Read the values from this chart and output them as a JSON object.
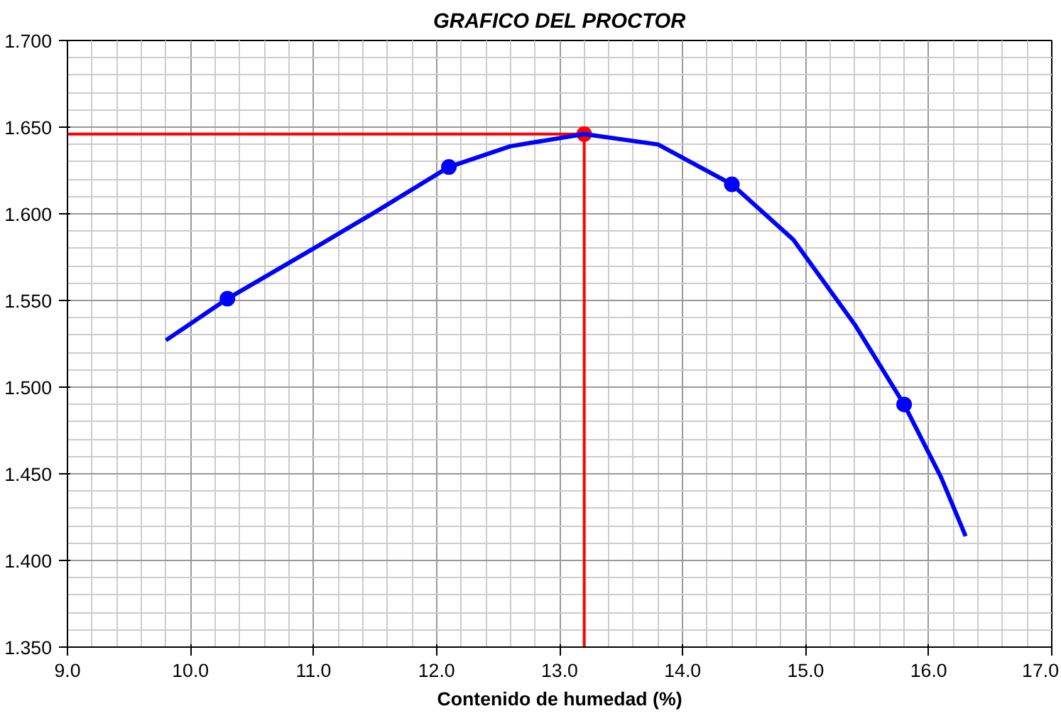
{
  "chart_data": {
    "type": "line",
    "title": "GRAFICO DEL PROCTOR",
    "xlabel": "Contenido de humedad (%)",
    "xlim": [
      9.0,
      17.0
    ],
    "xticks": [
      {
        "value": 9.0,
        "label": "9.0"
      },
      {
        "value": 10.0,
        "label": "10.0"
      },
      {
        "value": 11.0,
        "label": "11.0"
      },
      {
        "value": 12.0,
        "label": "12.0"
      },
      {
        "value": 13.0,
        "label": "13.0"
      },
      {
        "value": 14.0,
        "label": "14.0"
      },
      {
        "value": 15.0,
        "label": "15.0"
      },
      {
        "value": 16.0,
        "label": "16.0"
      },
      {
        "value": 17.0,
        "label": "17.0"
      }
    ],
    "ylim": [
      1.35,
      1.7
    ],
    "yticks": [
      {
        "value": 1.35,
        "label": "1.350"
      },
      {
        "value": 1.4,
        "label": "1.400"
      },
      {
        "value": 1.45,
        "label": "1.450"
      },
      {
        "value": 1.5,
        "label": "1.500"
      },
      {
        "value": 1.55,
        "label": "1.550"
      },
      {
        "value": 1.6,
        "label": "1.600"
      },
      {
        "value": 1.65,
        "label": "1.650"
      },
      {
        "value": 1.7,
        "label": "1.700"
      }
    ],
    "grid": true,
    "series": [
      {
        "color": "#0000ff",
        "x": [
          9.8,
          10.3,
          11.0,
          11.5,
          12.1,
          12.6,
          13.2,
          13.8,
          14.4,
          14.9,
          15.4,
          15.8,
          16.1,
          16.3
        ],
        "values": [
          1.527,
          1.551,
          1.58,
          1.601,
          1.627,
          1.639,
          1.646,
          1.64,
          1.617,
          1.585,
          1.536,
          1.49,
          1.448,
          1.414
        ],
        "marker": "none"
      },
      {
        "type": "scatter",
        "color": "#0000ff",
        "x": [
          10.3,
          12.1,
          14.4,
          15.8
        ],
        "values": [
          1.551,
          1.627,
          1.617,
          1.49
        ],
        "marker": "circle"
      },
      {
        "color": "#ff0000",
        "x": [
          9.0,
          13.2,
          13.2
        ],
        "values": [
          1.646,
          1.646,
          1.35
        ],
        "marker": "none"
      },
      {
        "type": "scatter",
        "color": "#ff0000",
        "x": [
          13.2
        ],
        "values": [
          1.646
        ],
        "marker": "circle"
      }
    ]
  }
}
